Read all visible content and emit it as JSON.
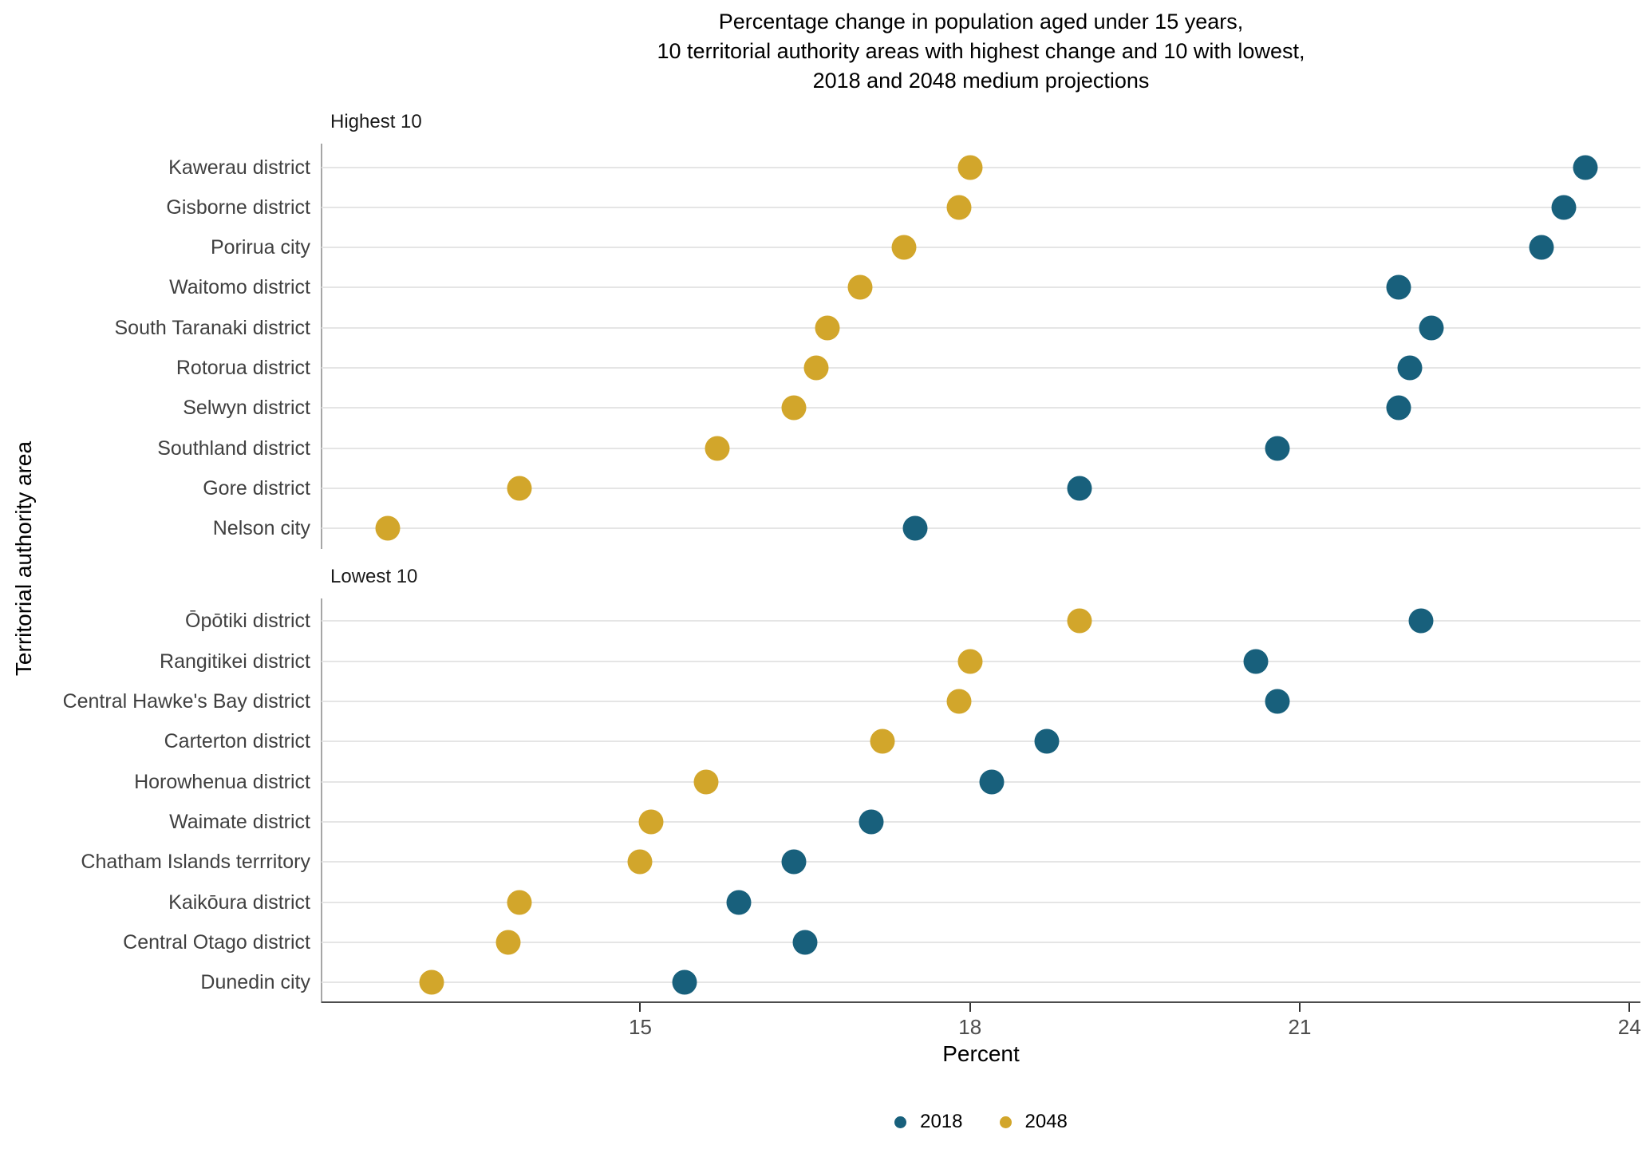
{
  "chart_data": {
    "type": "scatter",
    "title": "Percentage change in population aged under 15 years,\n10 territorial authority areas with highest change and 10 with lowest,\n2018 and 2048 medium projections",
    "xlabel": "Percent",
    "ylabel": "Territorial authority area",
    "xlim": [
      12.1,
      24.1
    ],
    "x_ticks": [
      15,
      18,
      21,
      24
    ],
    "grid": "horizontal-only",
    "legend_position": "bottom",
    "series": [
      {
        "name": "2018",
        "color": "#18607c"
      },
      {
        "name": "2048",
        "color": "#d2a62b"
      }
    ],
    "panels": [
      {
        "label": "Highest 10",
        "rows": [
          {
            "area": "Kawerau district",
            "2018": 23.6,
            "2048": 18.0
          },
          {
            "area": "Gisborne district",
            "2018": 23.4,
            "2048": 17.9
          },
          {
            "area": "Porirua city",
            "2018": 23.2,
            "2048": 17.4
          },
          {
            "area": "Waitomo district",
            "2018": 21.9,
            "2048": 17.0
          },
          {
            "area": "South Taranaki district",
            "2018": 22.2,
            "2048": 16.7
          },
          {
            "area": "Rotorua district",
            "2018": 22.0,
            "2048": 16.6
          },
          {
            "area": "Selwyn district",
            "2018": 21.9,
            "2048": 16.4
          },
          {
            "area": "Southland district",
            "2018": 20.8,
            "2048": 15.7
          },
          {
            "area": "Gore district",
            "2018": 19.0,
            "2048": 13.9
          },
          {
            "area": "Nelson city",
            "2018": 17.5,
            "2048": 12.7
          }
        ]
      },
      {
        "label": "Lowest 10",
        "rows": [
          {
            "area": "Ōpōtiki district",
            "2018": 22.1,
            "2048": 19.0
          },
          {
            "area": "Rangitikei district",
            "2018": 20.6,
            "2048": 18.0
          },
          {
            "area": "Central Hawke's Bay district",
            "2018": 20.8,
            "2048": 17.9
          },
          {
            "area": "Carterton district",
            "2018": 18.7,
            "2048": 17.2
          },
          {
            "area": "Horowhenua district",
            "2018": 18.2,
            "2048": 15.6
          },
          {
            "area": "Waimate district",
            "2018": 17.1,
            "2048": 15.1
          },
          {
            "area": "Chatham Islands terrritory",
            "2018": 16.4,
            "2048": 15.0
          },
          {
            "area": "Kaikōura district",
            "2018": 15.9,
            "2048": 13.9
          },
          {
            "area": "Central Otago district",
            "2018": 16.5,
            "2048": 13.8
          },
          {
            "area": "Dunedin city",
            "2018": 15.4,
            "2048": 13.1
          }
        ]
      }
    ]
  }
}
